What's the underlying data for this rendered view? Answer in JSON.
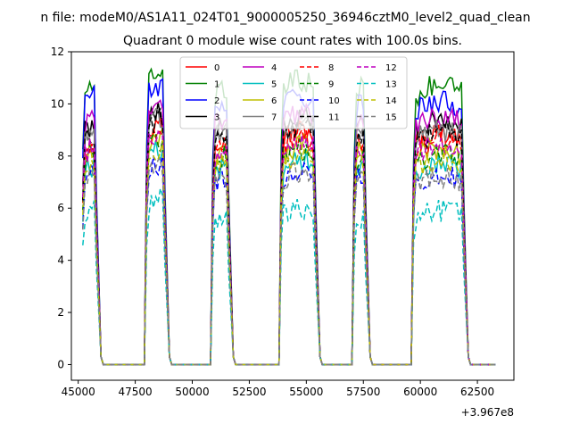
{
  "figure": {
    "suptitle": "n file: modeM0/AS1A11_024T01_9000005250_36946cztM0_level2_quad_clean",
    "offset_label": "+3.967e8"
  },
  "chart_data": {
    "type": "line",
    "title": "Quadrant 0 module wise count rates with 100.0s bins.",
    "xlabel": "",
    "ylabel": "",
    "x_offset": 396700000,
    "xlim": [
      44700,
      64100
    ],
    "ylim": [
      -0.6,
      12
    ],
    "xticks": [
      45000,
      47500,
      50000,
      52500,
      55000,
      57500,
      60000,
      62500
    ],
    "yticks": [
      0,
      2,
      4,
      6,
      8,
      10,
      12
    ],
    "grid": false,
    "legend": {
      "position": "top-center",
      "columns": 4
    },
    "orbit_segments": [
      {
        "start": 45200,
        "end": 46000,
        "zero_until": 48000
      },
      {
        "start": 48000,
        "end": 49000,
        "zero_until": 50900
      },
      {
        "start": 50900,
        "end": 51800,
        "zero_until": 53900
      },
      {
        "start": 53900,
        "end": 55600,
        "zero_until": 57100
      },
      {
        "start": 57100,
        "end": 57800,
        "zero_until": 59700
      },
      {
        "start": 59700,
        "end": 62100,
        "zero_until": 63400
      }
    ],
    "series": [
      {
        "name": "0",
        "color": "#ff0000",
        "dash": "solid",
        "segment_levels": [
          8.2,
          8.8,
          8.3,
          8.6,
          8.3,
          8.5
        ]
      },
      {
        "name": "1",
        "color": "#008000",
        "dash": "solid",
        "segment_levels": [
          10.3,
          10.9,
          10.2,
          10.5,
          10.2,
          10.3
        ]
      },
      {
        "name": "2",
        "color": "#0000ff",
        "dash": "solid",
        "segment_levels": [
          10.0,
          10.3,
          9.6,
          9.9,
          9.6,
          9.7
        ]
      },
      {
        "name": "3",
        "color": "#000000",
        "dash": "solid",
        "segment_levels": [
          8.8,
          9.4,
          8.8,
          9.0,
          8.8,
          8.9
        ]
      },
      {
        "name": "4",
        "color": "#bf00bf",
        "dash": "solid",
        "segment_levels": [
          9.0,
          9.6,
          9.0,
          9.2,
          9.0,
          9.1
        ]
      },
      {
        "name": "5",
        "color": "#00bfbf",
        "dash": "solid",
        "segment_levels": [
          7.2,
          7.8,
          7.2,
          7.5,
          7.2,
          7.3
        ]
      },
      {
        "name": "6",
        "color": "#bfbf00",
        "dash": "solid",
        "segment_levels": [
          7.8,
          8.4,
          7.8,
          8.0,
          7.8,
          7.9
        ]
      },
      {
        "name": "7",
        "color": "#808080",
        "dash": "solid",
        "segment_levels": [
          8.5,
          9.1,
          8.5,
          8.8,
          8.5,
          8.6
        ]
      },
      {
        "name": "8",
        "color": "#ff0000",
        "dash": "dashed",
        "segment_levels": [
          8.0,
          8.5,
          8.0,
          8.3,
          8.0,
          8.1
        ]
      },
      {
        "name": "9",
        "color": "#008000",
        "dash": "dashed",
        "segment_levels": [
          7.6,
          8.2,
          7.6,
          7.8,
          7.6,
          7.7
        ]
      },
      {
        "name": "10",
        "color": "#0000ff",
        "dash": "dashed",
        "segment_levels": [
          6.8,
          7.3,
          6.8,
          7.0,
          6.8,
          6.9
        ]
      },
      {
        "name": "11",
        "color": "#000000",
        "dash": "dashed",
        "segment_levels": [
          8.4,
          9.0,
          8.4,
          8.7,
          8.4,
          8.5
        ]
      },
      {
        "name": "12",
        "color": "#bf00bf",
        "dash": "dashed",
        "segment_levels": [
          7.9,
          8.5,
          7.9,
          8.1,
          7.9,
          8.0
        ]
      },
      {
        "name": "13",
        "color": "#00bfbf",
        "dash": "dashed",
        "segment_levels": [
          5.6,
          6.0,
          5.3,
          5.6,
          5.3,
          5.5
        ]
      },
      {
        "name": "14",
        "color": "#bfbf00",
        "dash": "dashed",
        "segment_levels": [
          7.3,
          7.9,
          7.3,
          7.6,
          7.3,
          7.4
        ]
      },
      {
        "name": "15",
        "color": "#808080",
        "dash": "dashed",
        "segment_levels": [
          6.7,
          7.2,
          6.7,
          7.0,
          6.7,
          6.8
        ]
      }
    ],
    "extra_series": [
      {
        "color": "#7fbf7f",
        "dash": "solid",
        "note_level": [
          null,
          null,
          10.1,
          10.9,
          null,
          null
        ]
      }
    ]
  }
}
